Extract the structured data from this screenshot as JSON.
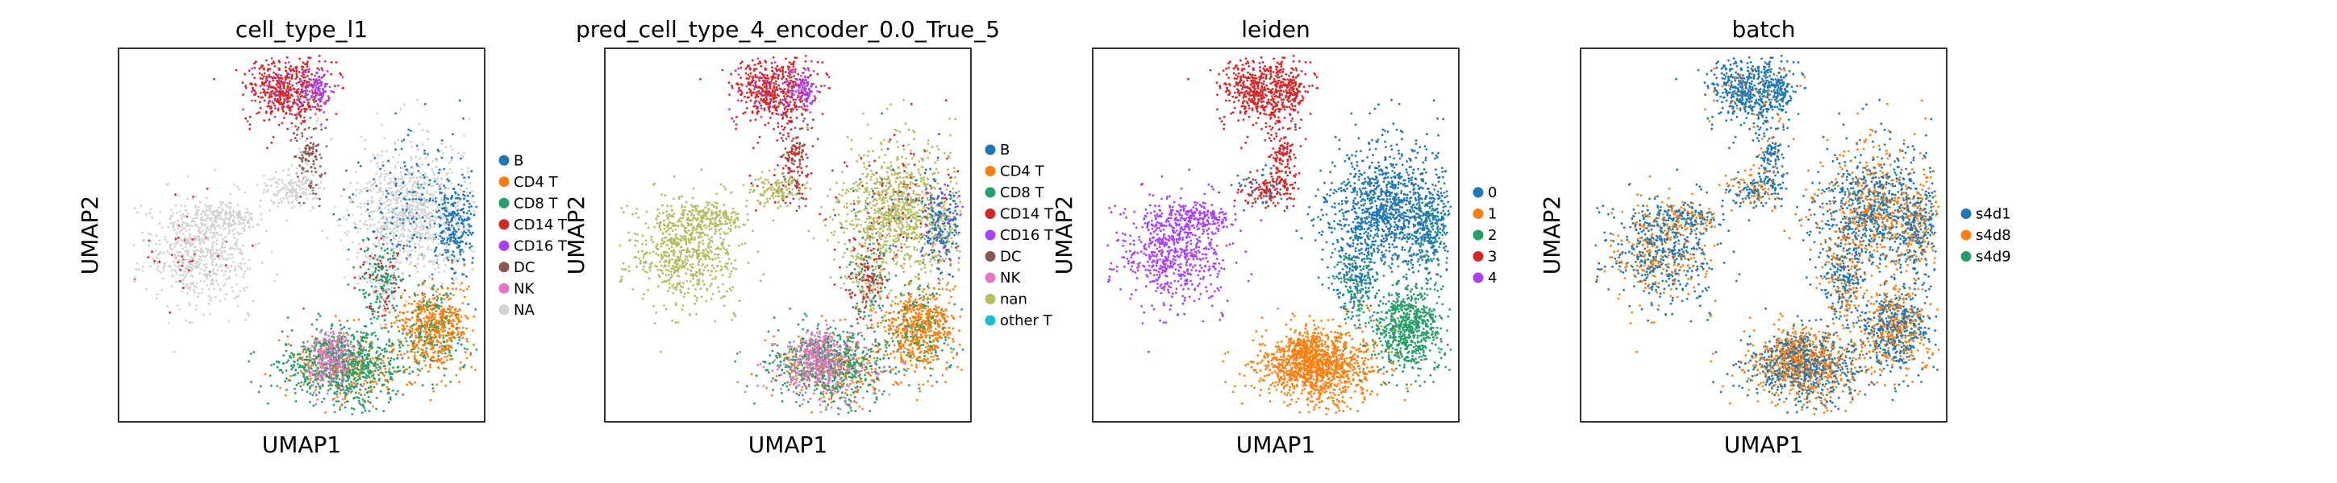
{
  "chart_data": [
    {
      "type": "scatter",
      "title": "cell_type_l1",
      "xlabel": "UMAP1",
      "ylabel": "UMAP2",
      "grid": false,
      "legend_position": "right",
      "legend": [
        {
          "name": "B",
          "color": "#1f77b4"
        },
        {
          "name": "CD4 T",
          "color": "#ff7f0e"
        },
        {
          "name": "CD8 T",
          "color": "#279e68"
        },
        {
          "name": "CD14 T",
          "color": "#d62728"
        },
        {
          "name": "CD16 T",
          "color": "#aa40fc"
        },
        {
          "name": "DC",
          "color": "#8c564b"
        },
        {
          "name": "NK",
          "color": "#e377c2"
        },
        {
          "name": "NA",
          "color": "#d3d3d3"
        }
      ]
    },
    {
      "type": "scatter",
      "title": "pred_cell_type_4_encoder_0.0_True_5",
      "xlabel": "UMAP1",
      "ylabel": "UMAP2",
      "grid": false,
      "legend_position": "right",
      "legend": [
        {
          "name": "B",
          "color": "#1f77b4"
        },
        {
          "name": "CD4 T",
          "color": "#ff7f0e"
        },
        {
          "name": "CD8 T",
          "color": "#279e68"
        },
        {
          "name": "CD14 T",
          "color": "#d62728"
        },
        {
          "name": "CD16 T",
          "color": "#aa40fc"
        },
        {
          "name": "DC",
          "color": "#8c564b"
        },
        {
          "name": "NK",
          "color": "#e377c2"
        },
        {
          "name": "nan",
          "color": "#b5bd61"
        },
        {
          "name": "other T",
          "color": "#17becf"
        }
      ]
    },
    {
      "type": "scatter",
      "title": "leiden",
      "xlabel": "UMAP1",
      "ylabel": "UMAP2",
      "grid": false,
      "legend_position": "right",
      "legend": [
        {
          "name": "0",
          "color": "#1f77b4"
        },
        {
          "name": "1",
          "color": "#ff7f0e"
        },
        {
          "name": "2",
          "color": "#279e68"
        },
        {
          "name": "3",
          "color": "#d62728"
        },
        {
          "name": "4",
          "color": "#aa40fc"
        }
      ]
    },
    {
      "type": "scatter",
      "title": "batch",
      "xlabel": "UMAP1",
      "ylabel": "UMAP2",
      "grid": false,
      "legend_position": "right",
      "legend": [
        {
          "name": "s4d1",
          "color": "#1f77b4"
        },
        {
          "name": "s4d8",
          "color": "#ff7f0e"
        },
        {
          "name": "s4d9",
          "color": "#279e68"
        }
      ]
    }
  ]
}
